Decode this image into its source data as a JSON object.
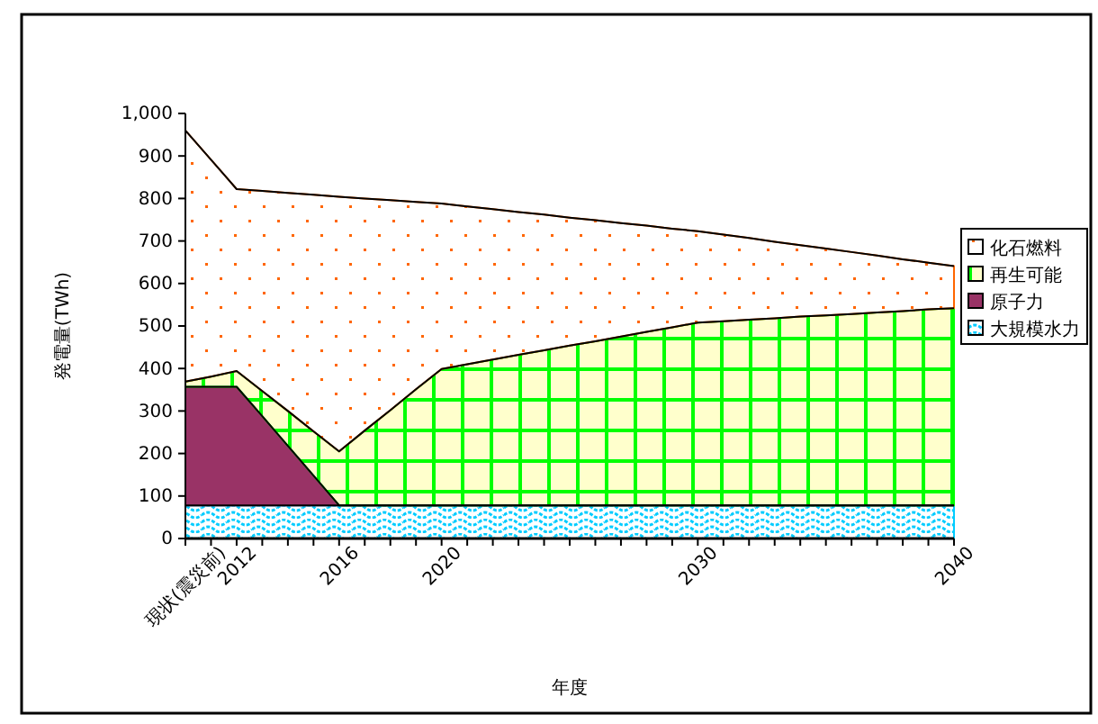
{
  "chart_data": {
    "type": "area",
    "stacked": true,
    "xlabel": "年度",
    "ylabel": "発電量(TWh)",
    "categories": [
      "現状(震災前)",
      null,
      "2012",
      null,
      null,
      null,
      "2016",
      null,
      null,
      null,
      "2020",
      null,
      null,
      null,
      null,
      null,
      null,
      null,
      null,
      null,
      "2030",
      null,
      null,
      null,
      null,
      null,
      null,
      null,
      null,
      null,
      "2040"
    ],
    "series": [
      {
        "name": "大規模水力",
        "color": "#00ccff",
        "values": [
          78,
          78,
          78,
          78,
          78,
          78,
          78,
          78,
          78,
          78,
          78,
          78,
          78,
          78,
          78,
          78,
          78,
          78,
          78,
          78,
          78,
          78,
          78,
          78,
          78,
          78,
          78,
          78,
          78,
          78,
          78
        ]
      },
      {
        "name": "原子力",
        "color": "#993366",
        "values": [
          279,
          279,
          279,
          210,
          140,
          70,
          0,
          0,
          0,
          0,
          0,
          0,
          0,
          0,
          0,
          0,
          0,
          0,
          0,
          0,
          0,
          0,
          0,
          0,
          0,
          0,
          0,
          0,
          0,
          0,
          0
        ]
      },
      {
        "name": "再生可能",
        "color": "#00ff00",
        "values": [
          12,
          24,
          37,
          59,
          82,
          104,
          127,
          176,
          224,
          273,
          321,
          332,
          343,
          354,
          365,
          376,
          386,
          397,
          408,
          419,
          430,
          433,
          437,
          440,
          444,
          447,
          450,
          454,
          457,
          461,
          464
        ]
      },
      {
        "name": "化石燃料",
        "color": "#ff6600",
        "values": [
          591,
          510,
          428,
          471,
          513,
          557,
          599,
          546,
          494,
          441,
          389,
          371,
          354,
          336,
          319,
          301,
          285,
          267,
          250,
          232,
          215,
          204,
          192,
          180,
          168,
          157,
          146,
          134,
          122,
          110,
          99
        ]
      }
    ],
    "ylim": [
      0,
      1000
    ],
    "yticks": [
      0,
      100,
      200,
      300,
      400,
      500,
      600,
      700,
      800,
      900,
      {
        "value": 1000,
        "label": "1,000"
      }
    ],
    "grid": false,
    "legend": "right"
  }
}
